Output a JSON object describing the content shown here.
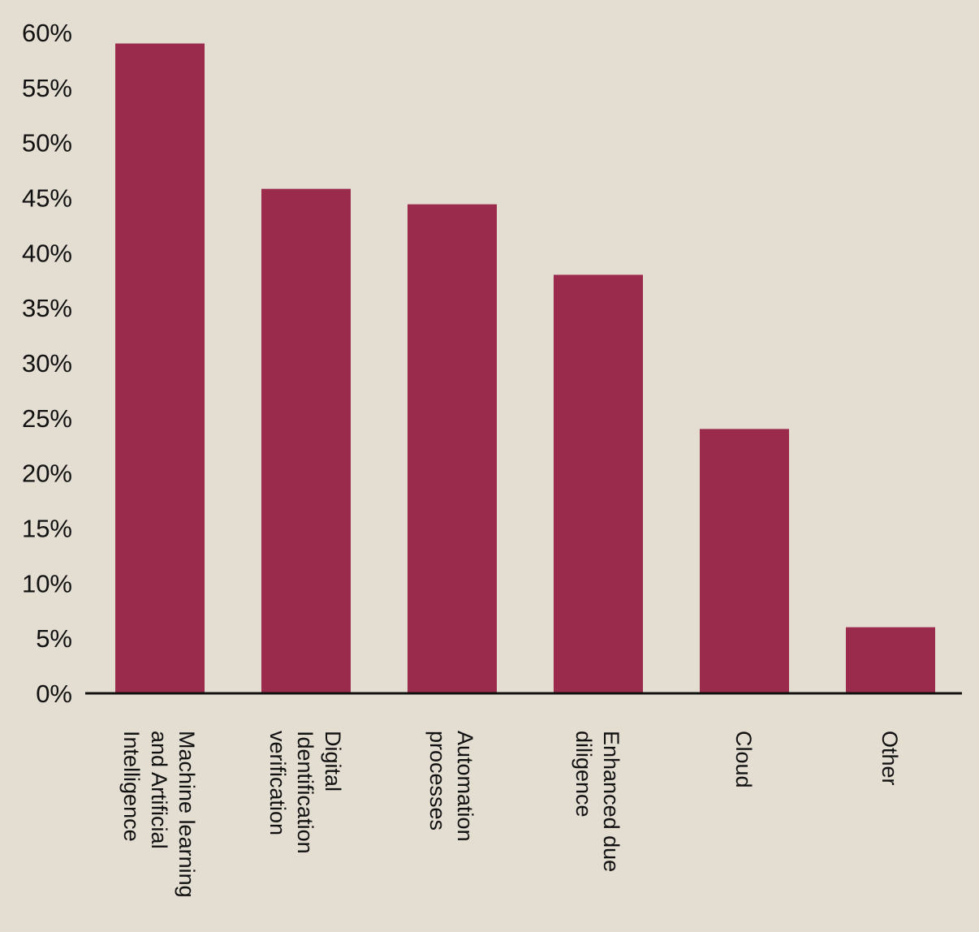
{
  "colors": {
    "background": "#e3ddd2",
    "bar": "#9b2b4c",
    "axis": "#111111",
    "text": "#111111"
  },
  "chart_data": {
    "type": "bar",
    "title": "",
    "xlabel": "",
    "ylabel": "",
    "ylim": [
      0,
      60
    ],
    "y_tick_values": [
      0,
      5,
      10,
      15,
      20,
      25,
      30,
      35,
      40,
      45,
      50,
      55,
      60
    ],
    "y_tick_labels": [
      "0%",
      "5%",
      "10%",
      "15%",
      "20%",
      "25%",
      "30%",
      "35%",
      "40%",
      "45%",
      "50%",
      "55%",
      "60%"
    ],
    "grid": false,
    "legend": "none",
    "categories": [
      [
        "Machine learning",
        "and Artificial",
        "Intelligence"
      ],
      [
        "Digital",
        "Identification",
        "verification"
      ],
      [
        "Automation",
        "processes"
      ],
      [
        "Enhanced due",
        "diligence"
      ],
      [
        "Cloud"
      ],
      [
        "Other"
      ]
    ],
    "values": [
      59,
      45.8,
      44.4,
      38,
      24,
      6
    ]
  }
}
